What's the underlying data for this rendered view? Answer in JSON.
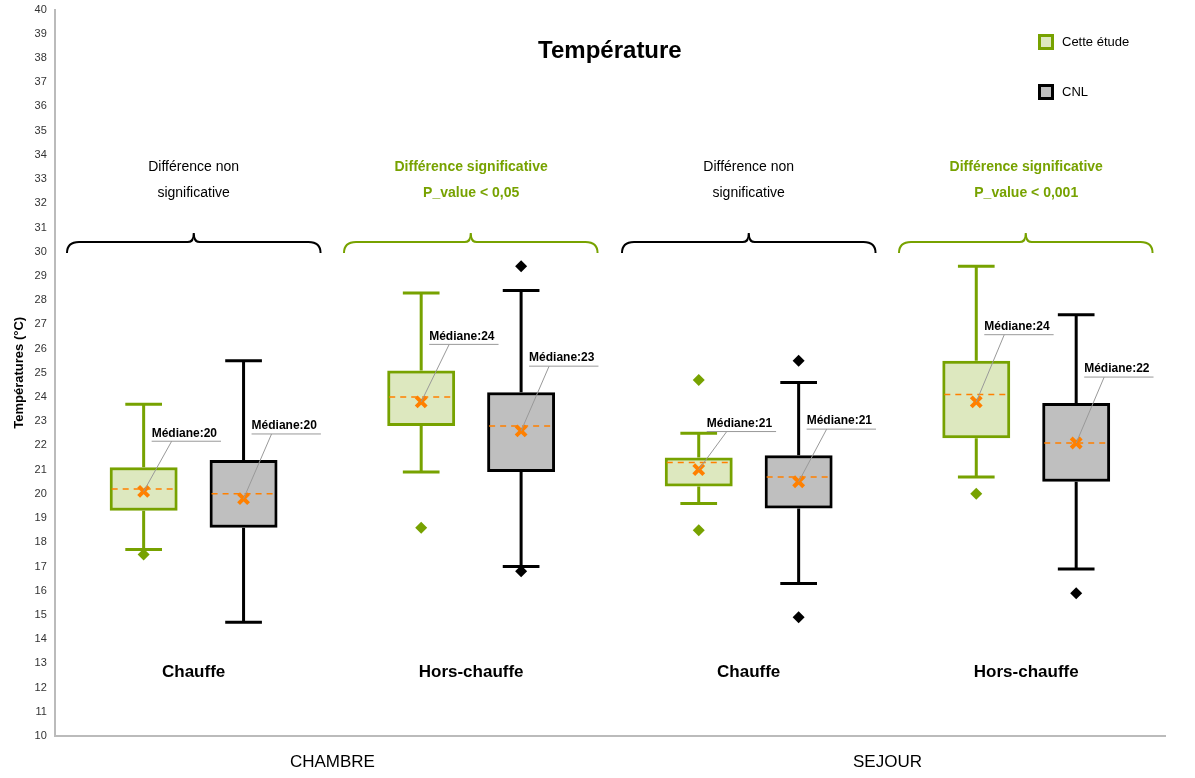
{
  "chart_data": {
    "type": "box",
    "title": "Température",
    "ylabel": "Températures (°C)",
    "categories": [
      "Chauffe",
      "Hors-chauffe",
      "Chauffe",
      "Hors-chauffe"
    ],
    "ylim": [
      10,
      40
    ],
    "yticks": [
      10,
      11,
      12,
      13,
      14,
      15,
      16,
      17,
      18,
      19,
      20,
      21,
      22,
      23,
      24,
      25,
      26,
      27,
      28,
      29,
      30,
      31,
      32,
      33,
      34,
      35,
      36,
      37,
      38,
      39,
      40
    ],
    "grid": false,
    "legend": "top right",
    "series": [
      {
        "name": "Cette étude",
        "color": "#77a200",
        "value_labels": [
          "Médiane:20",
          "Médiane:24",
          "Médiane:21",
          "Médiane:24"
        ],
        "boxes": [
          {
            "low": 17.7,
            "q1": 19.3,
            "median": 20.2,
            "q3": 21.1,
            "high": 23.7,
            "mean": 20.1,
            "outliers": [
              17.5
            ]
          },
          {
            "low": 20.9,
            "q1": 22.8,
            "median": 24.0,
            "q3": 25.1,
            "high": 28.3,
            "mean": 23.8,
            "outliers": [
              18.6
            ]
          },
          {
            "low": 19.6,
            "q1": 20.3,
            "median": 21.3,
            "q3": 21.5,
            "high": 22.5,
            "mean": 21.0,
            "outliers": [
              18.5,
              24.7
            ]
          },
          {
            "low": 20.7,
            "q1": 22.3,
            "median": 24.1,
            "q3": 25.5,
            "high": 29.4,
            "mean": 23.8,
            "outliers": [
              20.0
            ]
          }
        ]
      },
      {
        "name": "CNL",
        "color": "#000000",
        "value_labels": [
          "Médiane:20",
          "Médiane:23",
          "Médiane:21",
          "Médiane:22"
        ],
        "boxes": [
          {
            "low": 14.7,
            "q1": 18.6,
            "median": 20.0,
            "q3": 21.4,
            "high": 25.5,
            "mean": 19.8
          },
          {
            "low": 17.0,
            "q1": 20.9,
            "median": 22.8,
            "q3": 24.2,
            "high": 28.4,
            "mean": 22.6,
            "outliers": [
              29.4,
              16.8
            ]
          },
          {
            "low": 16.3,
            "q1": 19.4,
            "median": 20.7,
            "q3": 21.6,
            "high": 24.6,
            "mean": 20.5,
            "outliers": [
              25.5,
              14.9
            ]
          },
          {
            "low": 16.9,
            "q1": 20.5,
            "median": 22.1,
            "q3": 23.75,
            "high": 27.4,
            "mean": 22.1,
            "outliers": [
              15.9
            ]
          }
        ]
      }
    ],
    "annotations": [
      "Différence non\nsignificative",
      "Différence significative\nP_value < 0,05",
      "Différence non\nsignificative",
      "Différence significative\nP_value < 0,001",
      "CHAMBRE",
      "SEJOUR"
    ]
  }
}
